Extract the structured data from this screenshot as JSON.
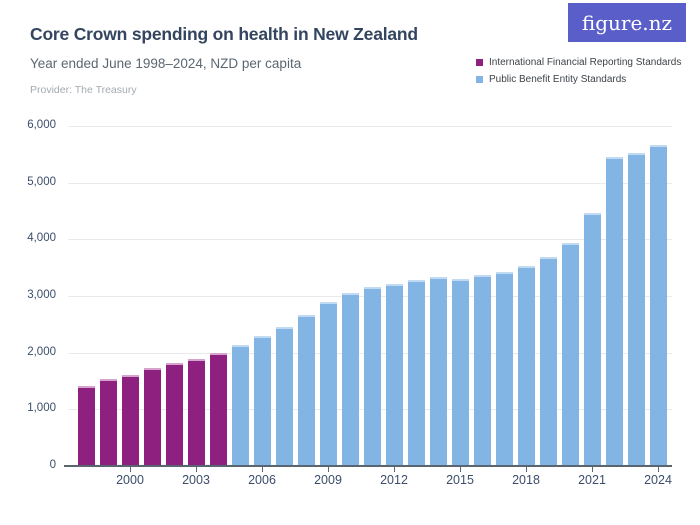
{
  "header": {
    "title": "Core Crown spending on health in New Zealand",
    "subtitle": "Year ended June 1998–2024, NZD per capita",
    "provider": "Provider: The Treasury",
    "logo_text": "figure.nz",
    "logo_bg": "#5a5ec8"
  },
  "chart_data": {
    "type": "bar",
    "title": "Core Crown spending on health in New Zealand",
    "subtitle": "Year ended June 1998–2024, NZD per capita",
    "xlabel": "Year ended June",
    "ylabel": "NZD per capita",
    "grid": true,
    "legend_position": "top-right",
    "ylim": [
      0,
      6000
    ],
    "yticks": [
      "0",
      "1,000",
      "2,000",
      "3,000",
      "4,000",
      "5,000",
      "6,000"
    ],
    "ytick_values": [
      0,
      1000,
      2000,
      3000,
      4000,
      5000,
      6000
    ],
    "xticks": [
      2000,
      2003,
      2006,
      2009,
      2012,
      2015,
      2018,
      2021,
      2024
    ],
    "x": [
      1998,
      1999,
      2000,
      2001,
      2002,
      2003,
      2004,
      2005,
      2006,
      2007,
      2008,
      2009,
      2010,
      2011,
      2012,
      2013,
      2014,
      2015,
      2016,
      2017,
      2018,
      2019,
      2020,
      2021,
      2022,
      2023,
      2024
    ],
    "series": [
      {
        "name": "International Financial Reporting Standards",
        "color": "#8e2080",
        "top_color": "#d5a4cd",
        "values": [
          1420,
          1540,
          1610,
          1730,
          1810,
          1890,
          2000,
          null,
          null,
          null,
          null,
          null,
          null,
          null,
          null,
          null,
          null,
          null,
          null,
          null,
          null,
          null,
          null,
          null,
          null,
          null,
          null
        ]
      },
      {
        "name": "Public Benefit Entity Standards",
        "color": "#82b5e4",
        "top_color": "#c0dbf2",
        "values": [
          null,
          null,
          null,
          null,
          null,
          null,
          null,
          2140,
          2300,
          2460,
          2670,
          2890,
          3050,
          3160,
          3220,
          3280,
          3330,
          3300,
          3370,
          3430,
          3530,
          3690,
          3930,
          4470,
          5450,
          5530,
          5670
        ]
      }
    ]
  }
}
